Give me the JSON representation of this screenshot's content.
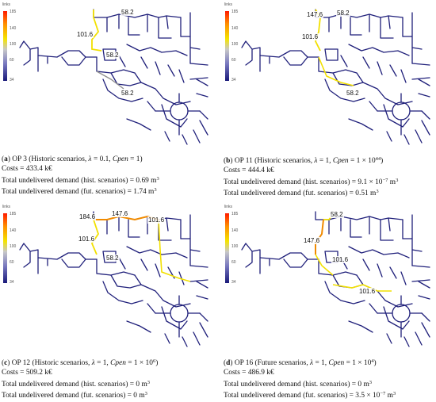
{
  "legend": {
    "title": "links",
    "ticks": [
      "185",
      "140",
      "100",
      "60",
      "34"
    ]
  },
  "colors": {
    "network": "#1f1f7a",
    "yellow": "#f2e000",
    "orange": "#f08a00",
    "grey": "#8f8f8f"
  },
  "panels": [
    {
      "id": "a",
      "labels": [
        "58.2",
        "101.6",
        "58.2",
        "58.2"
      ],
      "caption": {
        "letter": "a",
        "op": "OP 3 (Historic scenarios, ",
        "lambda_eq": " = 0.1, ",
        "cpen_val": " = 1)",
        "costs": "Costs = 433.4 k€",
        "hist": "Total undelivered demand (hist. scenarios) = 0.69 m",
        "fut": "Total undelivered demand (fut. scenarios) = 1.74 m"
      }
    },
    {
      "id": "b",
      "labels": [
        "147.6",
        "58.2",
        "101.6",
        "58.2"
      ],
      "caption": {
        "letter": "b",
        "op": "OP 11 (Historic scenarios, ",
        "lambda_eq": " = 1, ",
        "cpen_val": " = 1 × 10",
        "cpen_exp": "44",
        "cpen_close": ")",
        "costs": "Costs = 444.4 k€",
        "hist": "Total undelivered demand (hist. scenarios) = 9.1 × 10",
        "hist_exp": "−7",
        "hist_unit": " m",
        "fut": "Total undelivered demand (fut. scenarios) = 0.51 m"
      }
    },
    {
      "id": "c",
      "labels": [
        "184.6",
        "147.6",
        "101.6",
        "101.6",
        "58.2"
      ],
      "caption": {
        "letter": "c",
        "op": "OP 12 (Historic scenarios, ",
        "lambda_eq": " = 1, ",
        "cpen_val": " = 1 × 10",
        "cpen_exp": "6",
        "cpen_close": ")",
        "costs": "Costs = 509.2 k€",
        "hist": "Total undelivered demand (hist. scenarios) = 0 m",
        "fut": "Total undelivered demand (fut. scenarios) = 0 m"
      }
    },
    {
      "id": "d",
      "labels": [
        "58.2",
        "147.6",
        "101.6",
        "101.6"
      ],
      "caption": {
        "letter": "d",
        "op": "OP 16 (Future scenarios, ",
        "lambda_eq": " = 1, ",
        "cpen_val": " = 1 × 10",
        "cpen_exp": "4",
        "cpen_close": ")",
        "costs": "Costs = 486.9 k€",
        "hist": "Total undelivered demand (hist. scenarios) = 0 m",
        "fut": "Total undelivered demand (fut. scenarios) = 3.5 × 10",
        "fut_exp": "−7",
        "fut_unit": " m"
      }
    }
  ],
  "symbols": {
    "lambda": "λ",
    "cpen": "Cpen",
    "cube": "3"
  }
}
